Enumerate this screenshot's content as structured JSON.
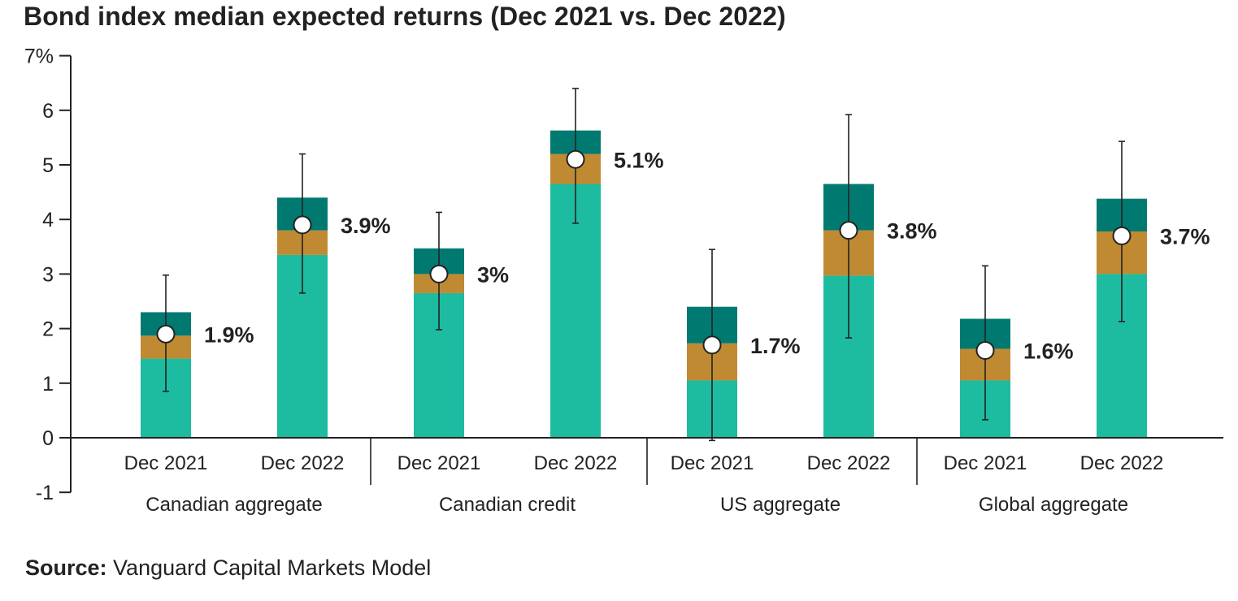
{
  "title": "Bond index median expected returns (Dec 2021 vs. Dec 2022)",
  "source": {
    "label": "Source:",
    "text": "Vanguard Capital Markets Model"
  },
  "colors": {
    "lower": "#1dbb9f",
    "middle": "#c08a33",
    "upper": "#007a70",
    "axis": "#222222",
    "marker": "#ffffff"
  },
  "chart_data": {
    "type": "bar",
    "stacked": true,
    "ylim": [
      -1,
      7
    ],
    "yticks": [
      7,
      6,
      5,
      4,
      3,
      2,
      1,
      0,
      -1
    ],
    "ytick_labels": [
      "7%",
      "6",
      "5",
      "4",
      "3",
      "2",
      "1",
      "0",
      "-1"
    ],
    "groups": [
      {
        "name": "Canadian aggregate",
        "bars": [
          {
            "category": "Dec 2021",
            "segments": [
              1.45,
              0.42,
              0.43
            ],
            "median": 1.9,
            "label": "1.9%",
            "whisker": [
              0.85,
              2.98
            ]
          },
          {
            "category": "Dec 2022",
            "segments": [
              3.35,
              0.45,
              0.6
            ],
            "median": 3.9,
            "label": "3.9%",
            "whisker": [
              2.65,
              5.2
            ]
          }
        ]
      },
      {
        "name": "Canadian credit",
        "bars": [
          {
            "category": "Dec 2021",
            "segments": [
              2.65,
              0.35,
              0.47
            ],
            "median": 3.0,
            "label": "3%",
            "whisker": [
              1.98,
              4.13
            ]
          },
          {
            "category": "Dec 2022",
            "segments": [
              4.65,
              0.55,
              0.43
            ],
            "median": 5.1,
            "label": "5.1%",
            "whisker": [
              3.93,
              6.4
            ]
          }
        ]
      },
      {
        "name": "US aggregate",
        "bars": [
          {
            "category": "Dec 2021",
            "segments": [
              1.05,
              0.68,
              0.67
            ],
            "median": 1.7,
            "label": "1.7%",
            "whisker": [
              -0.05,
              3.45
            ]
          },
          {
            "category": "Dec 2022",
            "segments": [
              2.97,
              0.83,
              0.85
            ],
            "median": 3.8,
            "label": "3.8%",
            "whisker": [
              1.83,
              5.92
            ]
          }
        ]
      },
      {
        "name": "Global aggregate",
        "bars": [
          {
            "category": "Dec 2021",
            "segments": [
              1.05,
              0.58,
              0.55
            ],
            "median": 1.6,
            "label": "1.6%",
            "whisker": [
              0.33,
              3.15
            ]
          },
          {
            "category": "Dec 2022",
            "segments": [
              3.0,
              0.78,
              0.6
            ],
            "median": 3.7,
            "label": "3.7%",
            "whisker": [
              2.13,
              5.43
            ]
          }
        ]
      }
    ],
    "grid": false
  }
}
